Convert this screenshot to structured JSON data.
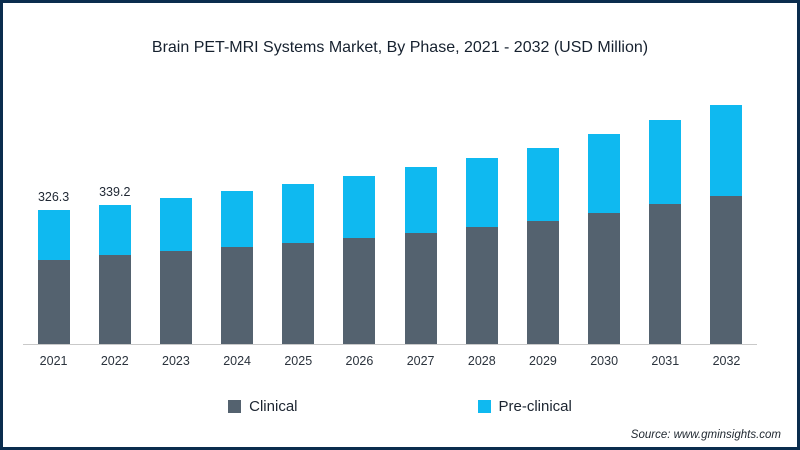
{
  "chart": {
    "title": "Brain PET-MRI Systems Market, By Phase, 2021 - 2032 (USD Million)"
  },
  "chart_data": {
    "type": "bar",
    "stacked": true,
    "title": "Brain PET-MRI Systems Market, By Phase, 2021 - 2032 (USD Million)",
    "xlabel": "",
    "ylabel": "USD Million",
    "categories": [
      "2021",
      "2022",
      "2023",
      "2024",
      "2025",
      "2026",
      "2027",
      "2028",
      "2029",
      "2030",
      "2031",
      "2032"
    ],
    "series": [
      {
        "name": "Clinical",
        "color": "#54626f",
        "values": [
          204.3,
          216.3,
          226.0,
          235.6,
          245.2,
          257.2,
          269.2,
          283.7,
          300.5,
          319.7,
          341.3,
          360.6
        ]
      },
      {
        "name": "Pre-clinical",
        "color": "#0fb9f0",
        "values": [
          122.0,
          122.9,
          130.0,
          137.4,
          144.8,
          151.8,
          162.8,
          168.3,
          177.5,
          190.3,
          204.7,
          221.4
        ]
      }
    ],
    "totals": [
      326.3,
      339.2,
      356.0,
      373.0,
      390.0,
      409.0,
      432.0,
      452.0,
      478.0,
      510.0,
      546.0,
      582.0
    ],
    "data_labels": {
      "2021": "326.3",
      "2022": "339.2"
    },
    "ylim": [
      0,
      640
    ],
    "grid": false,
    "legend_position": "bottom"
  },
  "legend": {
    "items": [
      {
        "label": "Clinical",
        "color": "#54626f"
      },
      {
        "label": "Pre-clinical",
        "color": "#0fb9f0"
      }
    ]
  },
  "footer": {
    "source": "Source: www.gminsights.com"
  }
}
